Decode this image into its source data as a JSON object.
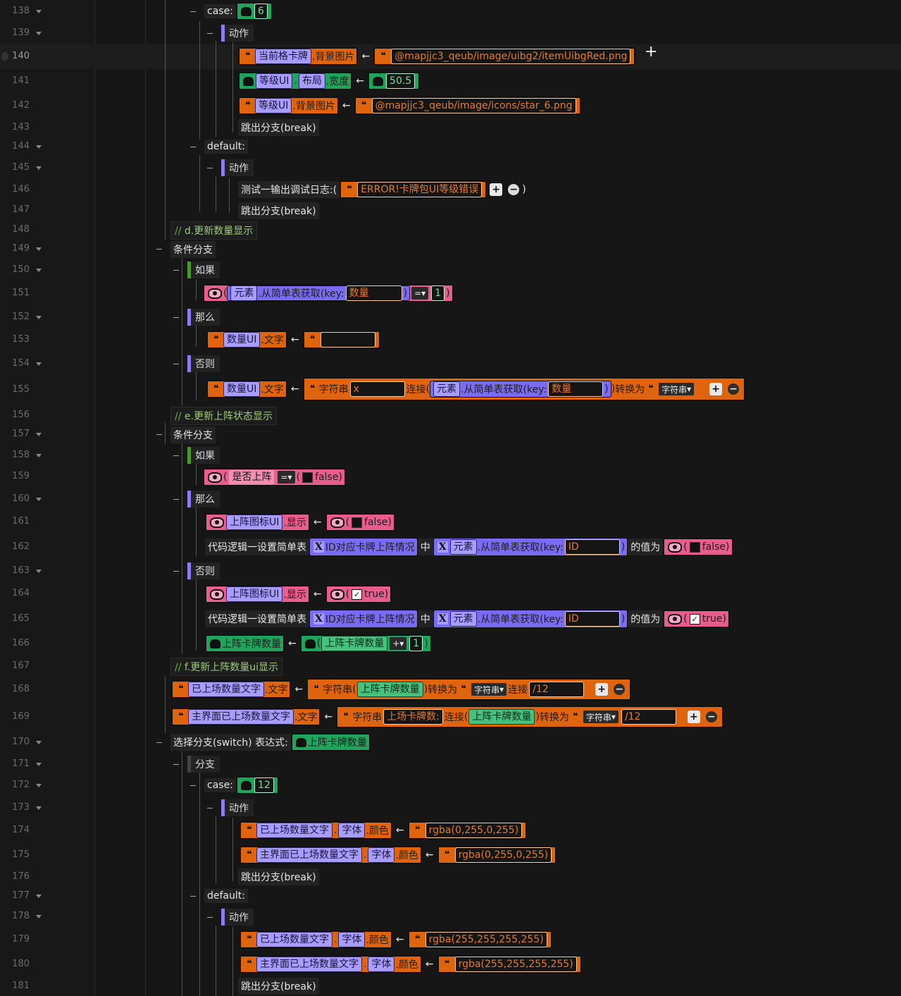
{
  "line_numbers": [
    "138",
    "139",
    "140",
    "141",
    "142",
    "143",
    "144",
    "145",
    "146",
    "147",
    "148",
    "149",
    "150",
    "151",
    "152",
    "153",
    "154",
    "155",
    "156",
    "157",
    "158",
    "159",
    "160",
    "161",
    "162",
    "163",
    "164",
    "165",
    "166",
    "167",
    "168",
    "169",
    "170",
    "171",
    "172",
    "173",
    "174",
    "175",
    "176",
    "177",
    "178",
    "179",
    "180",
    "181"
  ],
  "kw": {
    "case": "case:",
    "default": "default:",
    "action": "动作",
    "break": "跳出分支(break)",
    "cond_branch": "条件分支",
    "if": "如果",
    "then": "那么",
    "else": "否则",
    "branch": "分支",
    "switch": "选择分支(switch) 表达式:",
    "debug_log": "测试一输出调试日志:(",
    "debug_close": ")",
    "set_table": "代码逻辑一设置简单表",
    "in": "中",
    "value_is": "的值为",
    "concat": "连接",
    "convert_to": "转换为",
    "string": "字符串",
    "get_key": ".从简单表获取(key:",
    "paren_open": "(",
    "paren_close": ")",
    "eq": "=",
    "plus_op": "+",
    "arrow": "←"
  },
  "vars": {
    "current_card": "当前格卡牌",
    "level_ui": "等级UI",
    "layout": "布局",
    "qty_ui": "数量UI",
    "element": "元素",
    "is_deployed": "是否上阵",
    "deploy_icon_ui": "上阵图标UI",
    "id_map": "ID对应卡牌上阵情况",
    "deploy_count": "上阵卡牌数量",
    "placed_qty_text": "已上场数量文字",
    "main_placed_qty_text": "主界面已上场数量文字",
    "font": "字体"
  },
  "props": {
    "bg_image": ".背景图片",
    "width": ".宽度",
    "text": ".文字",
    "show": ".显示",
    "color": ".颜色"
  },
  "values": {
    "case6": "6",
    "img_red": "@mapjjc3_qeub/image/uibg2/itemUibgRed.png",
    "w505": "50.5",
    "img_star6": "@mapjjc3_qeub/image/icons/star_6.png",
    "err_msg": "ERROR!卡牌包UI等级错误",
    "key_qty": "数量",
    "one": "1",
    "x": "x",
    "false": "false",
    "true": "true",
    "key_id": "ID",
    "slash12": "/12",
    "deploy_label": "上场卡牌数:",
    "case12": "12",
    "rgba_green": "rgba(0,255,0,255)",
    "rgba_white": "rgba(255,255,255,255)"
  },
  "comments": {
    "d": "d.更新数量显示",
    "e": "e.更新上阵状态显示",
    "f": "f.更新上阵数量ui显示",
    "slashes": "//"
  }
}
